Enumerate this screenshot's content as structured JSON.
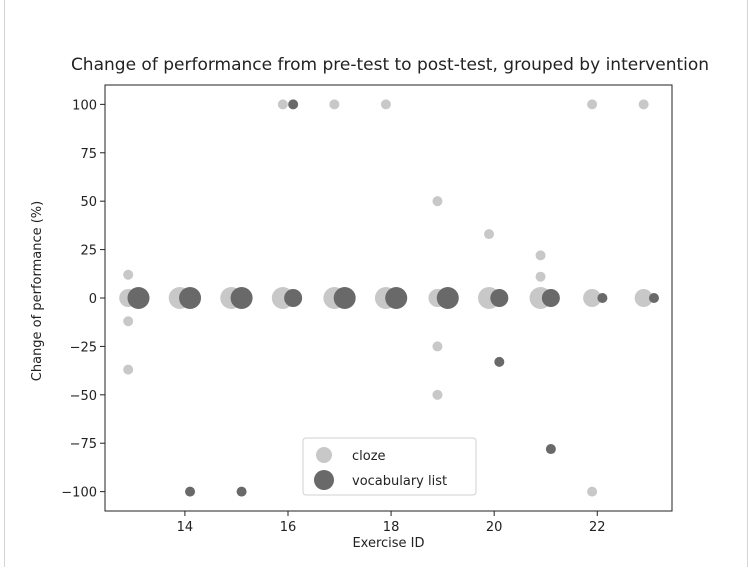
{
  "chart_data": {
    "type": "scatter",
    "title": "Change of performance from pre-test to post-test, grouped by intervention",
    "xlabel": "Exercise ID",
    "ylabel": "Change of performance (%)",
    "xlim": [
      12.45,
      23.45
    ],
    "ylim": [
      -110,
      110
    ],
    "x_ticks": [
      14,
      16,
      18,
      20,
      22
    ],
    "x_tick_labels": [
      "14",
      "16",
      "18",
      "20",
      "22"
    ],
    "y_ticks": [
      100,
      75,
      50,
      25,
      0,
      -25,
      -50,
      -75,
      -100
    ],
    "y_tick_labels": [
      "100",
      "75",
      "50",
      "25",
      "0",
      "−25",
      "−50",
      "−75",
      "−100"
    ],
    "grid": false,
    "legend_position": "lower center",
    "series": [
      {
        "name": "cloze",
        "color": "#c8c8c8",
        "points": [
          {
            "x": 12.9,
            "y": 12,
            "size": "small"
          },
          {
            "x": 12.9,
            "y": 0,
            "size": "medium"
          },
          {
            "x": 12.9,
            "y": -12,
            "size": "small"
          },
          {
            "x": 12.9,
            "y": -37,
            "size": "small"
          },
          {
            "x": 13.9,
            "y": 0,
            "size": "large"
          },
          {
            "x": 14.9,
            "y": 0,
            "size": "large"
          },
          {
            "x": 15.9,
            "y": 100,
            "size": "small"
          },
          {
            "x": 15.9,
            "y": 0,
            "size": "large"
          },
          {
            "x": 16.9,
            "y": 100,
            "size": "small"
          },
          {
            "x": 16.9,
            "y": 0,
            "size": "large"
          },
          {
            "x": 17.9,
            "y": 100,
            "size": "small"
          },
          {
            "x": 17.9,
            "y": 0,
            "size": "large"
          },
          {
            "x": 18.9,
            "y": 50,
            "size": "small"
          },
          {
            "x": 18.9,
            "y": 0,
            "size": "medium"
          },
          {
            "x": 18.9,
            "y": -25,
            "size": "small"
          },
          {
            "x": 18.9,
            "y": -50,
            "size": "small"
          },
          {
            "x": 19.9,
            "y": 33,
            "size": "small"
          },
          {
            "x": 19.9,
            "y": 0,
            "size": "large"
          },
          {
            "x": 20.9,
            "y": 22,
            "size": "small"
          },
          {
            "x": 20.9,
            "y": 11,
            "size": "small"
          },
          {
            "x": 20.9,
            "y": 0,
            "size": "large"
          },
          {
            "x": 21.9,
            "y": 100,
            "size": "small"
          },
          {
            "x": 21.9,
            "y": 0,
            "size": "medium"
          },
          {
            "x": 21.9,
            "y": -100,
            "size": "small"
          },
          {
            "x": 22.9,
            "y": 100,
            "size": "small"
          },
          {
            "x": 22.9,
            "y": 0,
            "size": "medium"
          }
        ]
      },
      {
        "name": "vocabulary list",
        "color": "#696969",
        "points": [
          {
            "x": 13.1,
            "y": 0,
            "size": "large"
          },
          {
            "x": 14.1,
            "y": 0,
            "size": "large"
          },
          {
            "x": 14.1,
            "y": -100,
            "size": "small"
          },
          {
            "x": 15.1,
            "y": 0,
            "size": "large"
          },
          {
            "x": 15.1,
            "y": -100,
            "size": "small"
          },
          {
            "x": 16.1,
            "y": 100,
            "size": "small"
          },
          {
            "x": 16.1,
            "y": 0,
            "size": "medium"
          },
          {
            "x": 17.1,
            "y": 0,
            "size": "large"
          },
          {
            "x": 18.1,
            "y": 0,
            "size": "large"
          },
          {
            "x": 19.1,
            "y": 0,
            "size": "large"
          },
          {
            "x": 20.1,
            "y": 0,
            "size": "medium"
          },
          {
            "x": 20.1,
            "y": -33,
            "size": "small"
          },
          {
            "x": 21.1,
            "y": 0,
            "size": "medium"
          },
          {
            "x": 21.1,
            "y": -78,
            "size": "small"
          },
          {
            "x": 22.1,
            "y": 0,
            "size": "small"
          },
          {
            "x": 23.1,
            "y": 0,
            "size": "small"
          }
        ]
      }
    ]
  }
}
